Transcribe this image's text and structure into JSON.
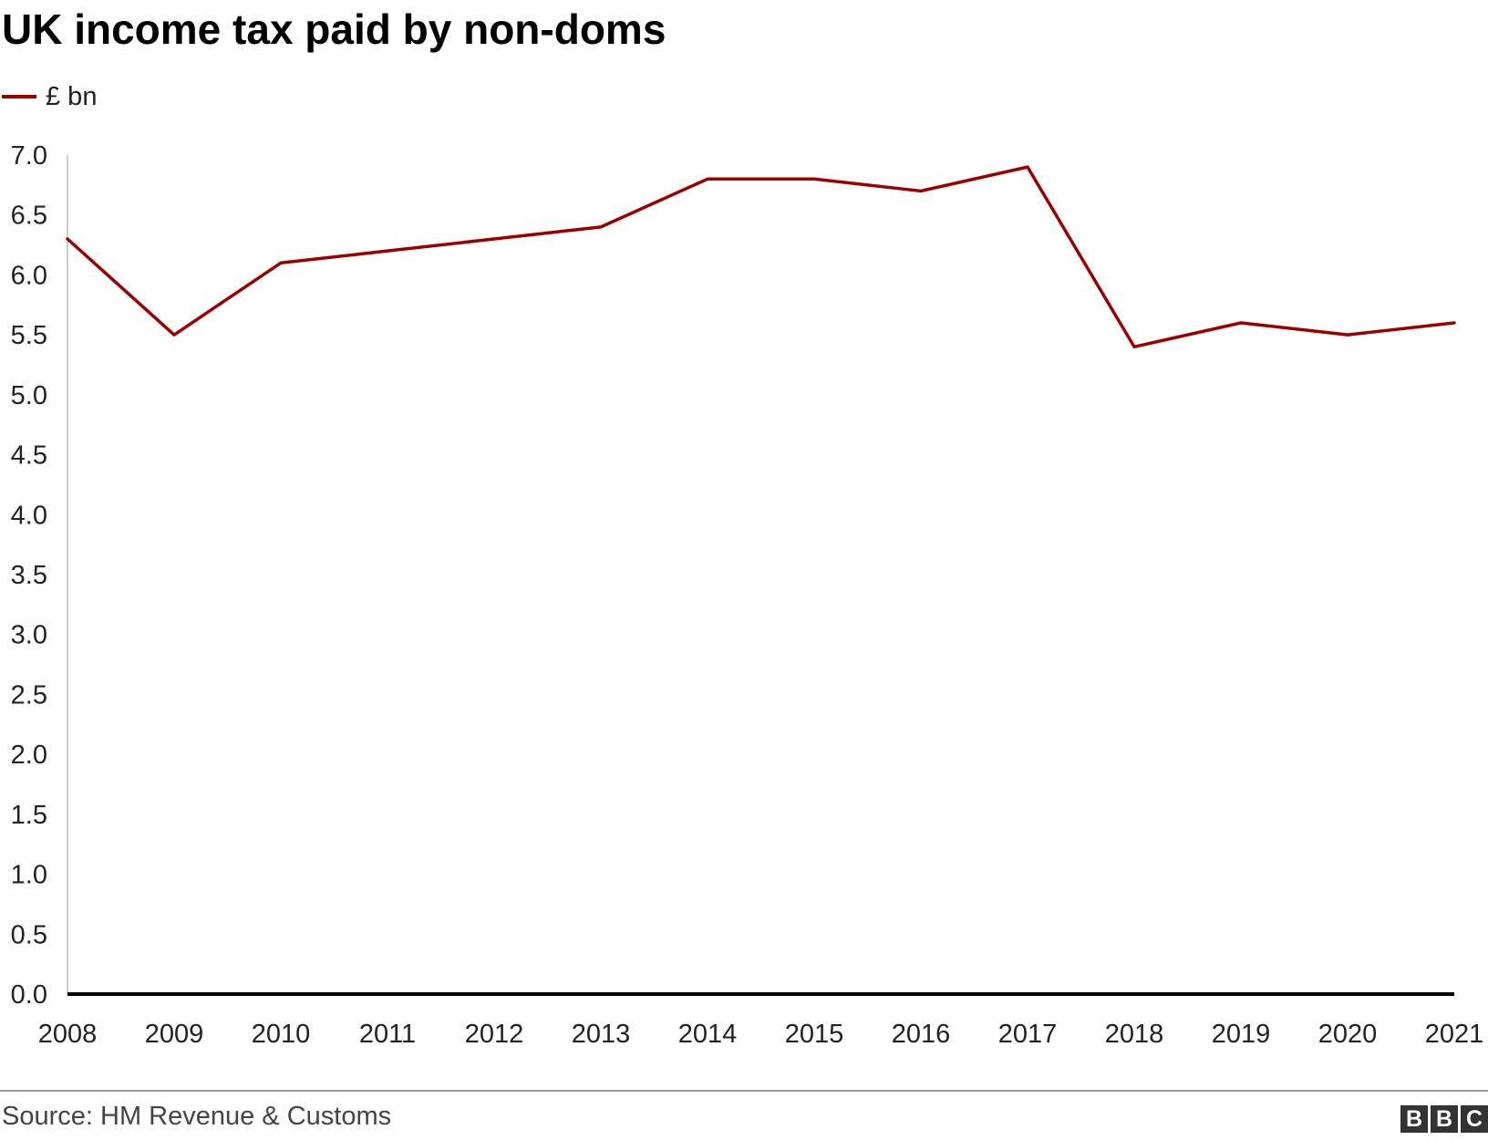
{
  "colors": {
    "series": "#990000",
    "axis": "#000000",
    "yaxis": "#cccccc",
    "text": "#222222"
  },
  "chart_data": {
    "type": "line",
    "title": "UK income tax paid by non-doms",
    "xlabel": "",
    "ylabel": "",
    "categories": [
      "2008",
      "2009",
      "2010",
      "2011",
      "2012",
      "2013",
      "2014",
      "2015",
      "2016",
      "2017",
      "2018",
      "2019",
      "2020",
      "2021"
    ],
    "series": [
      {
        "name": "£ bn",
        "values": [
          6.3,
          5.5,
          6.1,
          6.2,
          6.3,
          6.4,
          6.8,
          6.8,
          6.7,
          6.9,
          5.4,
          5.6,
          5.5,
          5.6
        ]
      }
    ],
    "y_ticks": [
      "0.0",
      "0.5",
      "1.0",
      "1.5",
      "2.0",
      "2.5",
      "3.0",
      "3.5",
      "4.0",
      "4.5",
      "5.0",
      "5.5",
      "6.0",
      "6.5",
      "7.0"
    ],
    "ylim": [
      0,
      7
    ],
    "grid": false,
    "legend": "top-left"
  },
  "footer": {
    "source": "Source: HM Revenue & Customs",
    "logo": [
      "B",
      "B",
      "C"
    ]
  }
}
